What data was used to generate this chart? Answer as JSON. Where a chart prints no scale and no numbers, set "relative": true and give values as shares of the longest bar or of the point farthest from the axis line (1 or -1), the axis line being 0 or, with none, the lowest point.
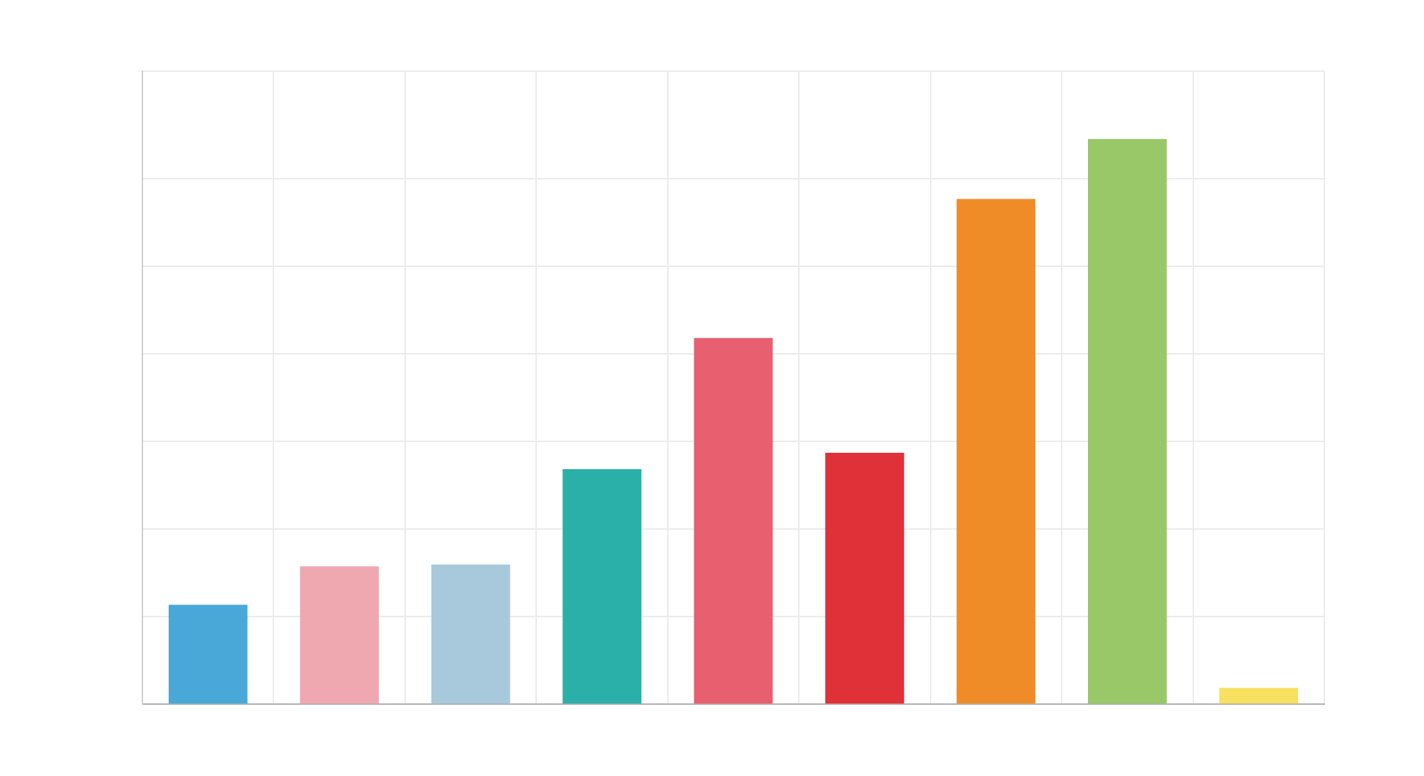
{
  "chart_data": {
    "type": "bar",
    "relative": true,
    "grid": true,
    "legend": false,
    "categories": [
      null,
      null,
      null,
      null,
      null,
      null,
      null,
      null,
      null
    ],
    "values": [
      0.176,
      0.244,
      0.247,
      0.416,
      0.648,
      0.445,
      0.894,
      1,
      0.029
    ],
    "colors": [
      "#4aa8d8",
      "#f0a8b0",
      "#a8c8dc",
      "#2ab0a8",
      "#e86070",
      "#e03038",
      "#f08c28",
      "#98c868",
      "#f8e060"
    ]
  }
}
